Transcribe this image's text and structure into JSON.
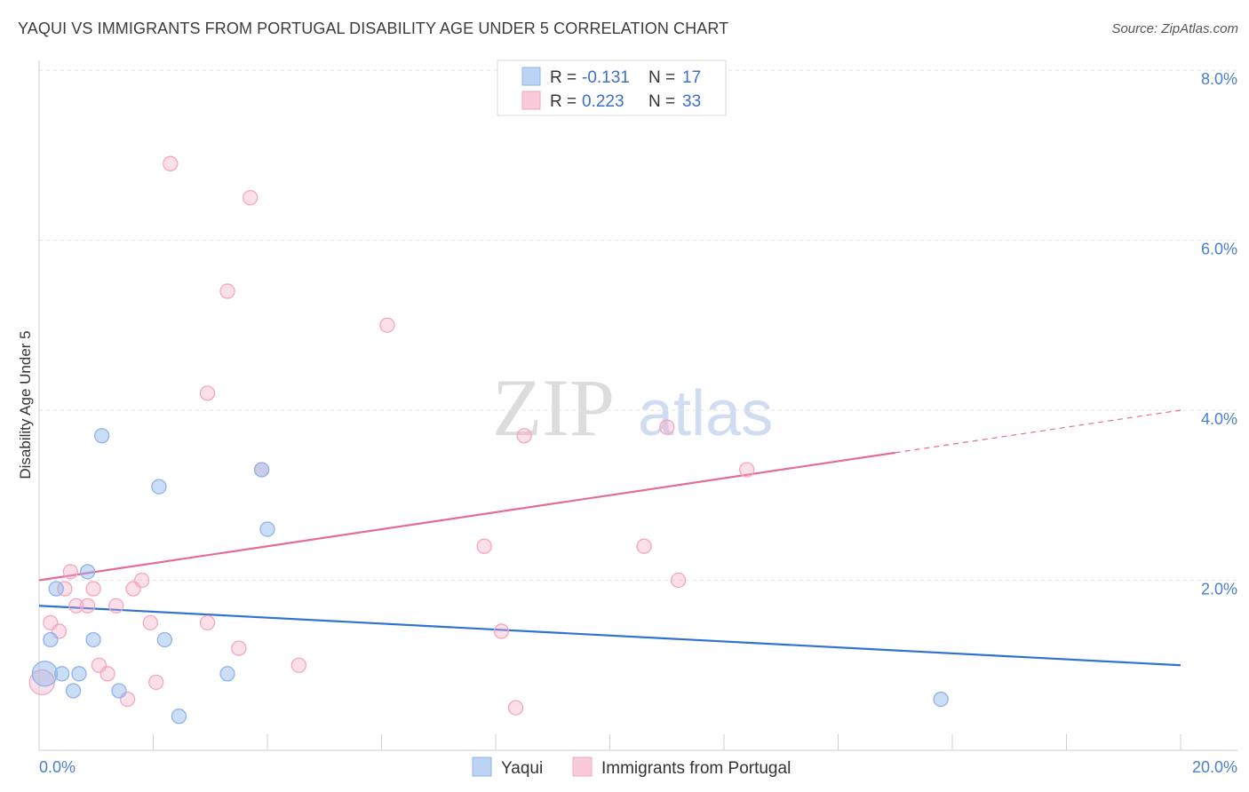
{
  "title": "YAQUI VS IMMIGRANTS FROM PORTUGAL DISABILITY AGE UNDER 5 CORRELATION CHART",
  "source": "Source: ZipAtlas.com",
  "watermark": {
    "zip": "ZIP",
    "atlas": "atlas"
  },
  "chart_data": {
    "type": "scatter",
    "title": "YAQUI VS IMMIGRANTS FROM PORTUGAL DISABILITY AGE UNDER 5 CORRELATION CHART",
    "xlabel": "",
    "ylabel": "Disability Age Under 5",
    "xlim": [
      0,
      20
    ],
    "ylim": [
      0,
      8
    ],
    "x_tick_labels": [
      "0.0%",
      "20.0%"
    ],
    "y_ticks": [
      2,
      4,
      6,
      8
    ],
    "y_tick_labels": [
      "2.0%",
      "4.0%",
      "6.0%",
      "8.0%"
    ],
    "legend_top": [
      {
        "r_label": "R =",
        "r_value": "-0.131",
        "n_label": "N =",
        "n_value": "17"
      },
      {
        "r_label": "R =",
        "r_value": "0.223",
        "n_label": "N =",
        "n_value": "33"
      }
    ],
    "series": [
      {
        "name": "Yaqui",
        "color": "#8db4ec",
        "line_color": "#2f72d4",
        "points": [
          [
            0.1,
            0.9
          ],
          [
            0.2,
            1.3
          ],
          [
            0.3,
            1.9
          ],
          [
            0.4,
            0.9
          ],
          [
            0.6,
            0.7
          ],
          [
            0.7,
            0.9
          ],
          [
            0.85,
            2.1
          ],
          [
            0.95,
            1.3
          ],
          [
            1.1,
            3.7
          ],
          [
            1.4,
            0.7
          ],
          [
            2.1,
            3.1
          ],
          [
            2.2,
            1.3
          ],
          [
            2.45,
            0.4
          ],
          [
            3.3,
            0.9
          ],
          [
            3.9,
            3.3
          ],
          [
            4.0,
            2.6
          ],
          [
            15.8,
            0.6
          ]
        ],
        "trend": {
          "x0": 0,
          "y0": 1.7,
          "x1": 20,
          "y1": 1.0
        }
      },
      {
        "name": "Immigrants from Portugal",
        "color": "#f4a6c0",
        "line_color": "#e46d98",
        "points": [
          [
            0.05,
            0.8
          ],
          [
            0.2,
            1.5
          ],
          [
            0.35,
            1.4
          ],
          [
            0.45,
            1.9
          ],
          [
            0.55,
            2.1
          ],
          [
            0.65,
            1.7
          ],
          [
            0.85,
            1.7
          ],
          [
            0.95,
            1.9
          ],
          [
            1.05,
            1.0
          ],
          [
            1.2,
            0.9
          ],
          [
            1.35,
            1.7
          ],
          [
            1.55,
            0.6
          ],
          [
            1.65,
            1.9
          ],
          [
            1.8,
            2.0
          ],
          [
            1.95,
            1.5
          ],
          [
            2.05,
            0.8
          ],
          [
            2.3,
            6.9
          ],
          [
            2.95,
            1.5
          ],
          [
            2.95,
            4.2
          ],
          [
            3.3,
            5.4
          ],
          [
            3.5,
            1.2
          ],
          [
            3.7,
            6.5
          ],
          [
            3.9,
            3.3
          ],
          [
            4.55,
            1.0
          ],
          [
            6.1,
            5.0
          ],
          [
            7.8,
            2.4
          ],
          [
            8.1,
            1.4
          ],
          [
            8.35,
            0.5
          ],
          [
            8.5,
            3.7
          ],
          [
            10.6,
            2.4
          ],
          [
            11.0,
            3.8
          ],
          [
            11.2,
            2.0
          ],
          [
            12.4,
            3.3
          ]
        ],
        "trend": {
          "x0": 0,
          "y0": 2.0,
          "x1": 15,
          "y1": 3.5
        },
        "trend_dashed": {
          "x0": 15,
          "y0": 3.5,
          "x1": 20,
          "y1": 4.0
        }
      }
    ]
  }
}
